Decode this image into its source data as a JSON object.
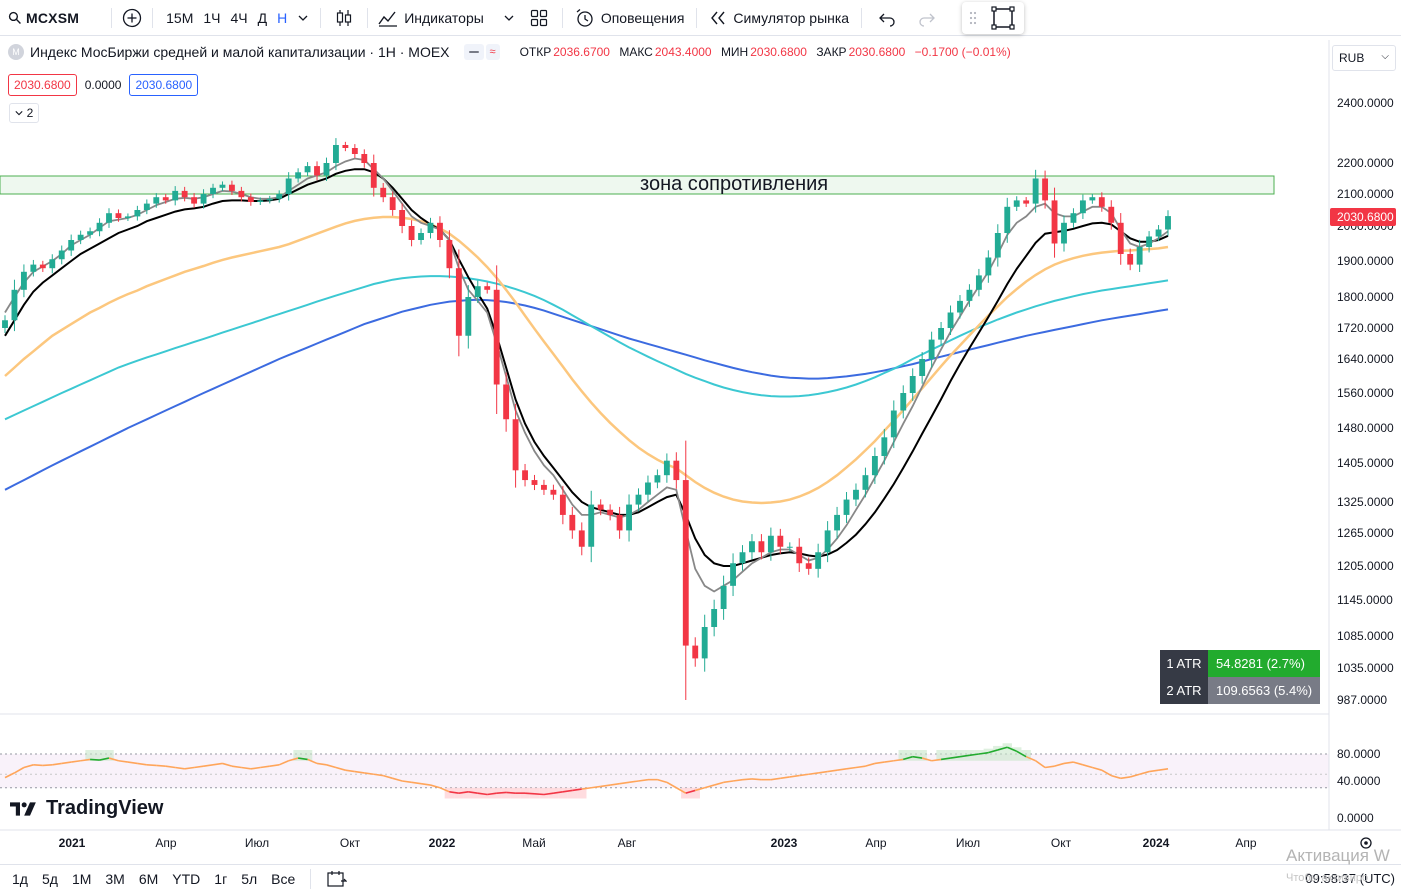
{
  "toolbar": {
    "symbol": "MCXSM",
    "intervals": [
      "15М",
      "1Ч",
      "4Ч",
      "Д",
      "Н"
    ],
    "indicators_label": "Индикаторы",
    "alerts_label": "Оповещения",
    "replay_label": "Симулятор рынка"
  },
  "legend": {
    "title": "Индекс МосБиржи средней и малой капитализации · 1Н · MOEX",
    "open_label": "ОТКР",
    "open": "2036.6700",
    "high_label": "МАКС",
    "high": "2043.4000",
    "low_label": "МИН",
    "low": "2030.6800",
    "close_label": "ЗАКР",
    "close": "2030.6800",
    "change": "−0.1700 (−0.01%)",
    "sell_price": "2030.6800",
    "spread": "0.0000",
    "buy_price": "2030.6800",
    "collapse_count": "2"
  },
  "currency": "RUB",
  "price_axis": {
    "labels": [
      "2400.0000",
      "2200.0000",
      "2100.0000",
      "2000.0000",
      "1900.0000",
      "1800.0000",
      "1720.0000",
      "1640.0000",
      "1560.0000",
      "1480.0000",
      "1405.0000",
      "1325.0000",
      "1265.0000",
      "1205.0000",
      "1145.0000",
      "1085.0000",
      "1035.0000",
      "987.0000"
    ],
    "last_price": "2030.6800"
  },
  "resistance_zone_label": "зона сопротивления",
  "atr": {
    "atr1_label": "1 ATR",
    "atr1_value": "54.8281 (2.7%)",
    "atr2_label": "2 ATR",
    "atr2_value": "109.6563 (5.4%)"
  },
  "rsi_axis": [
    "80.0000",
    "40.0000",
    "0.0000"
  ],
  "time_axis": [
    "2021",
    "Апр",
    "Июл",
    "Окт",
    "2022",
    "Май",
    "Авг",
    "2023",
    "Апр",
    "Июл",
    "Окт",
    "2024",
    "Апр"
  ],
  "brand": "TradingView",
  "bottom": {
    "ranges": [
      "1д",
      "5д",
      "1М",
      "3М",
      "6М",
      "YTD",
      "1г",
      "5л",
      "Все"
    ],
    "clock": "09:58:37 (UTC)"
  },
  "watermark": "Активация W",
  "watermark_sub": "Чтобы активиро",
  "colors": {
    "up": "#22ab94",
    "down": "#f23645",
    "ma_fast": "#888888",
    "ma_mid": "#000000",
    "ma_orange": "#fcc77e",
    "ma_cyan": "#3cc8d2",
    "ma_blue": "#3c6be0",
    "atr1": "#22ab2e",
    "atr2": "#787b86",
    "zone": "#4caf50"
  },
  "chart_data": {
    "type": "candlestick",
    "symbol": "MCXSM",
    "interval": "1W",
    "x_labels": [
      "2021",
      "Апр",
      "Июл",
      "Окт",
      "2022",
      "Май",
      "Авг",
      "2023",
      "Апр",
      "Июл",
      "Окт",
      "2024",
      "Апр"
    ],
    "y_ticks": [
      2400,
      2200,
      2100,
      2000,
      1900,
      1800,
      1720,
      1640,
      1560,
      1480,
      1405,
      1325,
      1265,
      1205,
      1145,
      1085,
      1035,
      987
    ],
    "last_price": 2030.68,
    "resistance_zone": [
      2100,
      2160
    ],
    "closes": [
      1740,
      1820,
      1870,
      1890,
      1880,
      1905,
      1930,
      1960,
      1975,
      1985,
      2010,
      2040,
      2025,
      2030,
      2050,
      2070,
      2090,
      2080,
      2110,
      2090,
      2070,
      2100,
      2120,
      2130,
      2110,
      2090,
      2075,
      2080,
      2085,
      2100,
      2150,
      2170,
      2190,
      2160,
      2200,
      2260,
      2250,
      2230,
      2200,
      2120,
      2090,
      2050,
      2000,
      1960,
      1980,
      2010,
      1960,
      1880,
      1700,
      1800,
      1830,
      1820,
      1580,
      1500,
      1390,
      1370,
      1360,
      1350,
      1340,
      1300,
      1270,
      1240,
      1320,
      1310,
      1300,
      1270,
      1320,
      1340,
      1365,
      1380,
      1410,
      1370,
      1070,
      1050,
      1100,
      1130,
      1170,
      1210,
      1230,
      1250,
      1230,
      1260,
      1240,
      1240,
      1210,
      1200,
      1230,
      1270,
      1300,
      1330,
      1350,
      1380,
      1420,
      1460,
      1520,
      1560,
      1600,
      1640,
      1690,
      1720,
      1760,
      1790,
      1820,
      1860,
      1910,
      1980,
      2060,
      2080,
      2070,
      2150,
      2080,
      1950,
      2010,
      2040,
      2080,
      2090,
      2060,
      2010,
      1920,
      1890,
      1940,
      1970,
      1990,
      2031
    ],
    "ma_fast": [
      1760,
      1800,
      1840,
      1870,
      1885,
      1900,
      1920,
      1945,
      1960,
      1975,
      1995,
      2015,
      2020,
      2025,
      2035,
      2050,
      2065,
      2075,
      2085,
      2088,
      2085,
      2090,
      2100,
      2110,
      2108,
      2100,
      2090,
      2085,
      2085,
      2090,
      2110,
      2130,
      2150,
      2160,
      2170,
      2190,
      2205,
      2215,
      2210,
      2180,
      2150,
      2110,
      2070,
      2030,
      2010,
      2000,
      1990,
      1960,
      1880,
      1820,
      1790,
      1760,
      1680,
      1600,
      1520,
      1470,
      1430,
      1400,
      1380,
      1350,
      1320,
      1300,
      1300,
      1305,
      1300,
      1295,
      1300,
      1310,
      1325,
      1340,
      1355,
      1350,
      1270,
      1200,
      1170,
      1160,
      1170,
      1180,
      1195,
      1210,
      1220,
      1230,
      1235,
      1235,
      1225,
      1215,
      1220,
      1235,
      1255,
      1280,
      1310,
      1340,
      1375,
      1410,
      1450,
      1490,
      1530,
      1575,
      1620,
      1665,
      1710,
      1750,
      1790,
      1830,
      1870,
      1920,
      1975,
      2010,
      2030,
      2060,
      2070,
      2040,
      2030,
      2030,
      2045,
      2060,
      2060,
      2040,
      1990,
      1950,
      1940,
      1950,
      1965,
      1985
    ],
    "ma_mid": [
      1700,
      1740,
      1780,
      1815,
      1840,
      1860,
      1880,
      1900,
      1920,
      1935,
      1950,
      1965,
      1980,
      1990,
      2000,
      2015,
      2025,
      2035,
      2045,
      2052,
      2055,
      2060,
      2070,
      2078,
      2080,
      2080,
      2078,
      2078,
      2080,
      2085,
      2100,
      2115,
      2130,
      2140,
      2150,
      2165,
      2175,
      2180,
      2180,
      2170,
      2150,
      2120,
      2085,
      2050,
      2025,
      2005,
      1990,
      1960,
      1905,
      1855,
      1810,
      1770,
      1700,
      1620,
      1545,
      1490,
      1450,
      1420,
      1395,
      1370,
      1345,
      1325,
      1315,
      1310,
      1305,
      1300,
      1300,
      1305,
      1315,
      1325,
      1335,
      1340,
      1300,
      1255,
      1225,
      1210,
      1205,
      1205,
      1210,
      1215,
      1220,
      1225,
      1228,
      1230,
      1228,
      1224,
      1222,
      1226,
      1234,
      1247,
      1262,
      1282,
      1305,
      1332,
      1362,
      1395,
      1430,
      1468,
      1506,
      1546,
      1588,
      1628,
      1668,
      1708,
      1748,
      1790,
      1836,
      1878,
      1915,
      1952,
      1978,
      1982,
      1986,
      1992,
      2000,
      2008,
      2010,
      2005,
      1985,
      1965,
      1955,
      1955,
      1960,
      1972
    ],
    "ma_orange": [
      1600,
      1620,
      1640,
      1660,
      1680,
      1700,
      1715,
      1730,
      1745,
      1760,
      1772,
      1785,
      1797,
      1808,
      1818,
      1830,
      1840,
      1850,
      1860,
      1870,
      1878,
      1886,
      1895,
      1903,
      1910,
      1916,
      1922,
      1928,
      1934,
      1940,
      1948,
      1958,
      1968,
      1978,
      1988,
      1998,
      2008,
      2016,
      2022,
      2026,
      2028,
      2028,
      2026,
      2022,
      2015,
      2005,
      1993,
      1978,
      1958,
      1935,
      1910,
      1883,
      1853,
      1820,
      1786,
      1752,
      1718,
      1685,
      1653,
      1622,
      1592,
      1564,
      1538,
      1514,
      1492,
      1472,
      1454,
      1438,
      1424,
      1412,
      1402,
      1394,
      1380,
      1366,
      1354,
      1344,
      1336,
      1330,
      1326,
      1324,
      1323,
      1324,
      1326,
      1330,
      1336,
      1344,
      1354,
      1366,
      1380,
      1396,
      1413,
      1432,
      1452,
      1474,
      1497,
      1521,
      1546,
      1571,
      1597,
      1623,
      1649,
      1675,
      1701,
      1727,
      1752,
      1776,
      1800,
      1822,
      1843,
      1861,
      1877,
      1890,
      1900,
      1908,
      1915,
      1920,
      1924,
      1927,
      1929,
      1930,
      1932,
      1934,
      1936,
      1940
    ],
    "ma_cyan": [
      1500,
      1510,
      1520,
      1530,
      1540,
      1550,
      1560,
      1570,
      1580,
      1590,
      1600,
      1610,
      1620,
      1628,
      1636,
      1644,
      1652,
      1660,
      1668,
      1676,
      1684,
      1692,
      1700,
      1708,
      1716,
      1724,
      1732,
      1740,
      1748,
      1756,
      1764,
      1772,
      1780,
      1788,
      1796,
      1804,
      1812,
      1820,
      1828,
      1836,
      1842,
      1848,
      1852,
      1855,
      1857,
      1858,
      1858,
      1857,
      1855,
      1852,
      1848,
      1843,
      1837,
      1830,
      1822,
      1813,
      1803,
      1792,
      1780,
      1767,
      1753,
      1739,
      1725,
      1711,
      1697,
      1683,
      1670,
      1658,
      1646,
      1635,
      1625,
      1615,
      1605,
      1596,
      1588,
      1580,
      1573,
      1567,
      1562,
      1558,
      1555,
      1553,
      1552,
      1552,
      1553,
      1555,
      1558,
      1562,
      1567,
      1573,
      1580,
      1588,
      1597,
      1607,
      1617,
      1628,
      1640,
      1652,
      1664,
      1676,
      1688,
      1700,
      1711,
      1722,
      1732,
      1742,
      1751,
      1760,
      1768,
      1776,
      1783,
      1790,
      1796,
      1802,
      1808,
      1813,
      1818,
      1822,
      1826,
      1830,
      1834,
      1838,
      1842,
      1846
    ],
    "ma_blue": [
      1350,
      1360,
      1370,
      1380,
      1390,
      1400,
      1410,
      1420,
      1430,
      1440,
      1450,
      1460,
      1470,
      1480,
      1490,
      1500,
      1510,
      1520,
      1530,
      1540,
      1550,
      1560,
      1570,
      1580,
      1590,
      1600,
      1610,
      1620,
      1630,
      1640,
      1650,
      1660,
      1670,
      1680,
      1690,
      1700,
      1710,
      1720,
      1730,
      1738,
      1746,
      1754,
      1762,
      1768,
      1774,
      1780,
      1784,
      1788,
      1790,
      1792,
      1793,
      1792,
      1790,
      1787,
      1783,
      1778,
      1772,
      1765,
      1757,
      1749,
      1741,
      1733,
      1725,
      1717,
      1709,
      1701,
      1693,
      1686,
      1679,
      1672,
      1665,
      1658,
      1651,
      1644,
      1637,
      1631,
      1625,
      1619,
      1614,
      1609,
      1605,
      1601,
      1598,
      1596,
      1595,
      1594,
      1594,
      1595,
      1597,
      1599,
      1602,
      1605,
      1609,
      1613,
      1618,
      1623,
      1628,
      1634,
      1640,
      1646,
      1652,
      1658,
      1664,
      1670,
      1676,
      1682,
      1688,
      1694,
      1700,
      1705,
      1710,
      1715,
      1720,
      1725,
      1730,
      1735,
      1740,
      1744,
      1748,
      1752,
      1756,
      1760,
      1764,
      1768
    ],
    "rsi": [
      45,
      52,
      60,
      64,
      63,
      64,
      66,
      68,
      70,
      72,
      71,
      74,
      70,
      68,
      66,
      64,
      63,
      62,
      60,
      58,
      60,
      62,
      64,
      66,
      62,
      60,
      58,
      60,
      62,
      64,
      70,
      74,
      72,
      66,
      64,
      60,
      56,
      54,
      52,
      50,
      48,
      44,
      40,
      38,
      36,
      34,
      30,
      24,
      22,
      24,
      22,
      20,
      22,
      23,
      22,
      22,
      21,
      20,
      22,
      24,
      26,
      28,
      30,
      32,
      34,
      36,
      38,
      40,
      42,
      42,
      38,
      30,
      22,
      26,
      30,
      34,
      38,
      40,
      42,
      43,
      42,
      42,
      44,
      46,
      48,
      50,
      52,
      54,
      56,
      58,
      60,
      62,
      66,
      68,
      70,
      72,
      76,
      74,
      70,
      72,
      74,
      76,
      78,
      80,
      82,
      86,
      90,
      84,
      76,
      70,
      60,
      62,
      66,
      68,
      64,
      60,
      56,
      48,
      44,
      46,
      50,
      54,
      56,
      58
    ]
  }
}
